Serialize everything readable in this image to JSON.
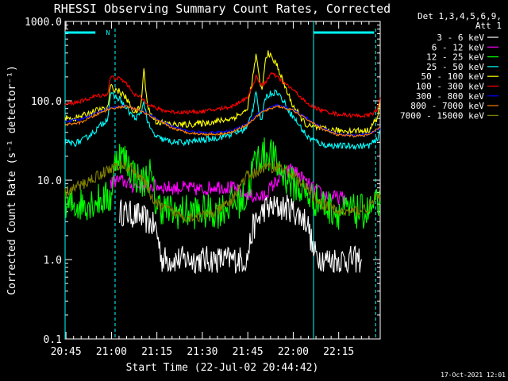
{
  "chart_data": {
    "type": "line",
    "title": "RHESSI Observing Summary Count Rates, Corrected",
    "xlabel": "Start Time (22-Jul-02 20:44:42)",
    "ylabel": "Corrected Count Rate (s⁻¹ detector⁻¹)",
    "yscale": "log",
    "ylim": [
      0.1,
      1000
    ],
    "xlim_minutes": [
      0,
      104
    ],
    "x_ticks": [
      "20:45",
      "21:00",
      "21:15",
      "21:30",
      "21:45",
      "22:00",
      "22:15"
    ],
    "y_ticks": [
      "0.1",
      "1.0",
      "10.0",
      "100.0",
      "1000.0"
    ],
    "legend_header": [
      "Det 1,3,4,5,6,9,",
      "Att 1"
    ],
    "legend_position": "right-outside",
    "footer": "17-Oct-2021 12:01",
    "flag_label": "N",
    "series": [
      {
        "name": "3 - 6 keV",
        "color": "#ffffff",
        "x": [
          18,
          25,
          30,
          32,
          40,
          60,
          62,
          66,
          74,
          80,
          82,
          86,
          88,
          90,
          93,
          98
        ],
        "values": [
          4,
          3.5,
          2.5,
          1,
          1,
          1,
          2.5,
          4.5,
          4.5,
          3,
          1.2,
          1,
          1,
          1,
          1,
          1
        ]
      },
      {
        "name": "6 - 12 keV",
        "color": "#ff00ff",
        "x": [
          15,
          17,
          20,
          22,
          25,
          30,
          35,
          40,
          45,
          50,
          55,
          60,
          65,
          70,
          75,
          80,
          85,
          90,
          93
        ],
        "values": [
          9,
          10,
          9.5,
          8.5,
          8.5,
          8.5,
          8,
          8,
          7.5,
          8.5,
          8,
          6.5,
          6,
          10,
          14,
          9,
          6.5,
          6,
          6
        ]
      },
      {
        "name": "12 - 25 keV",
        "color": "#00ff00",
        "x": [
          0,
          5,
          10,
          15,
          17,
          20,
          25,
          28,
          30,
          35,
          40,
          45,
          50,
          55,
          60,
          62,
          64,
          66,
          68,
          70,
          72,
          75,
          80,
          85,
          90,
          95,
          100,
          104
        ],
        "values": [
          4.5,
          5,
          5.5,
          6,
          22,
          18,
          9,
          12,
          5,
          4,
          4,
          4,
          4,
          5,
          6,
          15,
          20,
          21,
          22,
          15,
          12,
          9,
          6.5,
          5,
          4,
          4,
          4,
          5
        ]
      },
      {
        "name": "25 - 50 keV",
        "color": "#00ffff",
        "x": [
          0,
          3,
          6,
          10,
          14,
          15,
          18,
          20,
          23,
          25,
          26,
          27,
          28,
          30,
          33,
          36,
          40,
          45,
          50,
          55,
          60,
          62,
          63,
          64,
          65,
          66,
          68,
          70,
          72,
          75,
          78,
          80,
          85,
          90,
          95,
          100,
          103,
          104
        ],
        "values": [
          30,
          29,
          32,
          42,
          60,
          120,
          105,
          82,
          60,
          68,
          100,
          60,
          45,
          35,
          32,
          30,
          30,
          32,
          34,
          38,
          45,
          80,
          140,
          70,
          55,
          110,
          125,
          130,
          100,
          65,
          45,
          35,
          28,
          27,
          27,
          27,
          32,
          45
        ]
      },
      {
        "name": "50 - 100 keV",
        "color": "#ffff00",
        "x": [
          0,
          3,
          6,
          10,
          14,
          15,
          18,
          20,
          23,
          25,
          26,
          27,
          28,
          30,
          33,
          36,
          40,
          45,
          50,
          55,
          60,
          62,
          63,
          64,
          65,
          66,
          67,
          68,
          70,
          72,
          75,
          78,
          80,
          85,
          90,
          95,
          100,
          103,
          104
        ],
        "values": [
          60,
          60,
          65,
          75,
          80,
          150,
          130,
          110,
          70,
          85,
          250,
          100,
          70,
          55,
          52,
          50,
          50,
          52,
          55,
          60,
          75,
          200,
          380,
          200,
          130,
          300,
          420,
          350,
          280,
          170,
          90,
          60,
          48,
          44,
          42,
          42,
          42,
          60,
          95
        ]
      },
      {
        "name": "100 - 300 keV",
        "color": "#ff0000",
        "x": [
          0,
          3,
          6,
          10,
          14,
          15,
          18,
          20,
          23,
          25,
          27,
          30,
          33,
          36,
          40,
          45,
          50,
          55,
          60,
          62,
          63,
          65,
          68,
          70,
          72,
          75,
          78,
          80,
          85,
          90,
          95,
          100,
          103,
          104
        ],
        "values": [
          90,
          95,
          100,
          115,
          120,
          200,
          190,
          170,
          120,
          110,
          95,
          80,
          75,
          72,
          72,
          73,
          78,
          85,
          110,
          150,
          210,
          150,
          220,
          200,
          170,
          140,
          110,
          90,
          75,
          68,
          65,
          65,
          75,
          110
        ]
      },
      {
        "name": "300 - 800 keV",
        "color": "#0000ff",
        "x": [
          0,
          5,
          10,
          15,
          20,
          25,
          30,
          35,
          40,
          45,
          50,
          55,
          60,
          65,
          70,
          75,
          80,
          85,
          90,
          95,
          100,
          104
        ],
        "values": [
          55,
          58,
          70,
          82,
          86,
          75,
          60,
          48,
          42,
          40,
          40,
          42,
          52,
          75,
          88,
          78,
          60,
          45,
          38,
          37,
          38,
          45
        ]
      },
      {
        "name": "800 - 7000 keV",
        "color": "#ff8000",
        "x": [
          0,
          5,
          10,
          15,
          20,
          25,
          30,
          35,
          40,
          45,
          50,
          55,
          60,
          65,
          70,
          75,
          80,
          85,
          90,
          95,
          100,
          104
        ],
        "values": [
          50,
          53,
          66,
          80,
          85,
          75,
          58,
          46,
          40,
          38,
          38,
          40,
          50,
          72,
          86,
          76,
          58,
          44,
          37,
          36,
          37,
          46
        ]
      },
      {
        "name": "7000 - 15000 keV",
        "color": "#808000",
        "x": [
          0,
          5,
          10,
          15,
          18,
          20,
          22,
          25,
          28,
          30,
          35,
          40,
          45,
          50,
          55,
          58,
          60,
          65,
          70,
          72,
          75,
          80,
          85,
          90,
          95,
          100,
          104
        ],
        "values": [
          7,
          8.5,
          11,
          14,
          15,
          15,
          14,
          11,
          7,
          5,
          4,
          3.5,
          3.5,
          4,
          5.5,
          9,
          11,
          14,
          15,
          14,
          12,
          7.5,
          5,
          4,
          4,
          4.5,
          6.5
        ]
      }
    ]
  }
}
